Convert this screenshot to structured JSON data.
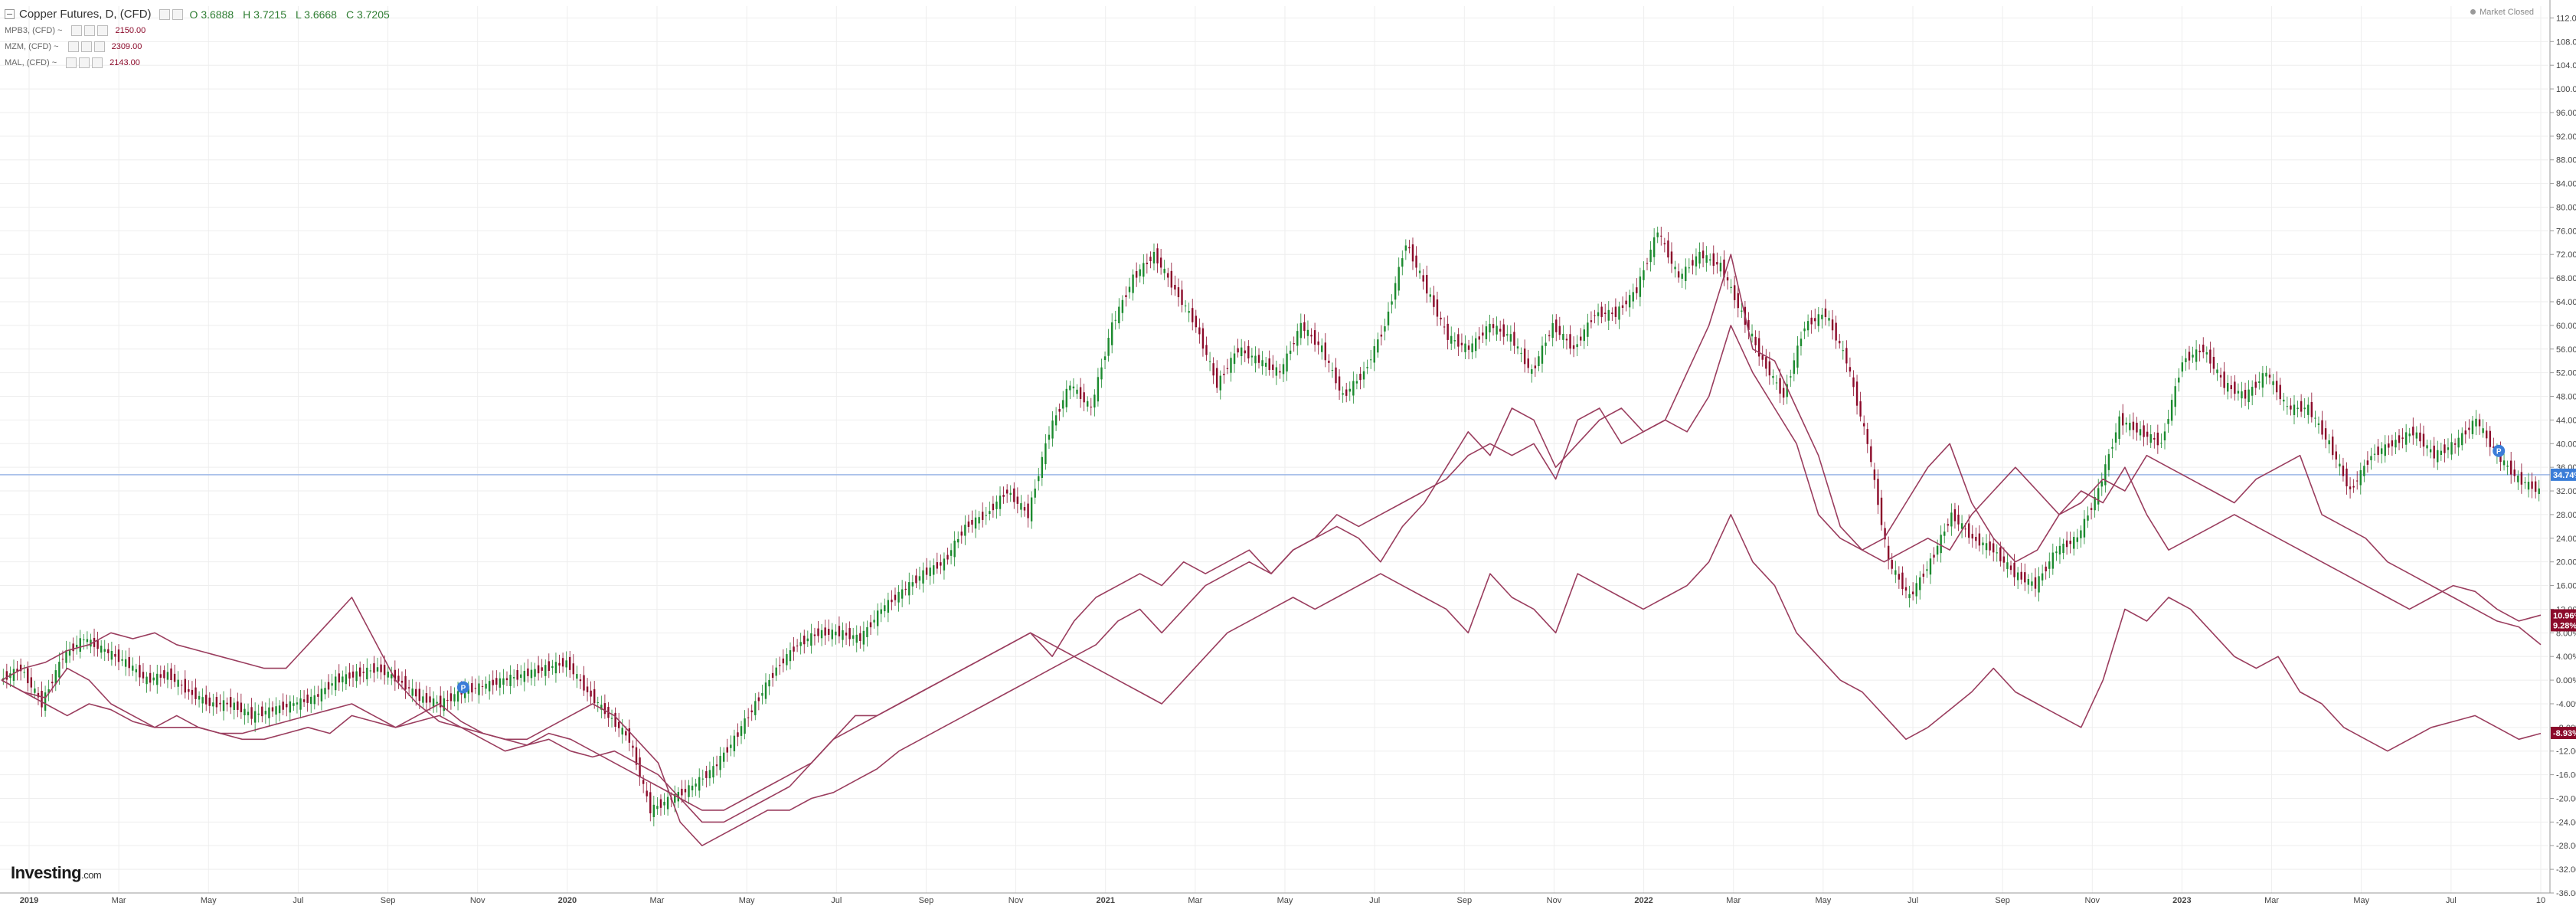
{
  "window": {
    "market_status": "Market Closed"
  },
  "legend": {
    "main": {
      "title": "Copper Futures, D, (CFD)",
      "o": "O 3.6888",
      "h": "H 3.7215",
      "l": "L 3.6668",
      "c": "C 3.7205"
    },
    "compare": [
      {
        "label": "MPB3, (CFD) ~",
        "value": "2150.00"
      },
      {
        "label": "MZM, (CFD) ~",
        "value": "2309.00"
      },
      {
        "label": "MAL, (CFD) ~",
        "value": "2143.00"
      }
    ]
  },
  "logo": {
    "brand": "Investing",
    "suffix": ".com"
  },
  "colors": {
    "up": "#1b8a2e",
    "down": "#8b0a2a",
    "compare": "#9a3d5e",
    "hline": "#9db7e6",
    "grid": "#eeeeee",
    "axis_badge_blue": "#3b7dd8",
    "axis_badge_red": "#8b0a2a"
  },
  "chart_data": {
    "type": "line",
    "title": "Copper Futures, D, (CFD)",
    "y_unit": "percent change",
    "ylim": [
      -36,
      114
    ],
    "y_ticks": [
      112,
      108,
      104,
      100,
      96,
      92,
      88,
      84,
      80,
      76,
      72,
      68,
      64,
      60,
      56,
      52,
      48,
      44,
      40,
      36,
      32,
      28,
      24,
      20,
      16,
      12,
      8,
      4,
      0,
      -4,
      -8,
      -12,
      -16,
      -20,
      -24,
      -28,
      -32,
      -36
    ],
    "x_ticks": [
      "2019",
      "Mar",
      "May",
      "Jul",
      "Sep",
      "Nov",
      "2020",
      "Mar",
      "May",
      "Jul",
      "Sep",
      "Nov",
      "2021",
      "Mar",
      "May",
      "Jul",
      "Sep",
      "Nov",
      "2022",
      "Mar",
      "May",
      "Jul",
      "Sep",
      "Nov",
      "2023",
      "Mar",
      "May",
      "Jul",
      "10"
    ],
    "x_tick_bold": [
      "2019",
      "2020",
      "2021",
      "2022",
      "2023"
    ],
    "time_range": [
      "2019-01-02",
      "2023-10-10"
    ],
    "horizontal_line": 34.74,
    "series": [
      {
        "name": "Copper Futures",
        "style": "candles",
        "values": [
          0,
          2,
          -4,
          4,
          7,
          5,
          3,
          0,
          1,
          -2,
          -4,
          -4,
          -6,
          -5,
          -4,
          -3,
          0,
          1,
          2,
          0,
          -3,
          -4,
          -2,
          -1,
          0,
          1,
          2,
          3,
          -2,
          -6,
          -10,
          -22,
          -20,
          -18,
          -15,
          -10,
          -4,
          2,
          6,
          8,
          8,
          7,
          12,
          15,
          18,
          20,
          26,
          28,
          32,
          28,
          42,
          50,
          46,
          60,
          68,
          72,
          66,
          60,
          50,
          56,
          54,
          52,
          60,
          56,
          48,
          52,
          60,
          74,
          66,
          58,
          56,
          60,
          58,
          52,
          60,
          56,
          62,
          62,
          66,
          76,
          68,
          72,
          70,
          62,
          54,
          48,
          60,
          62,
          54,
          40,
          20,
          14,
          20,
          28,
          24,
          22,
          18,
          16,
          22,
          24,
          32,
          44,
          42,
          40,
          54,
          56,
          50,
          48,
          52,
          46,
          46,
          40,
          32,
          38,
          40,
          42,
          38,
          40,
          44,
          38,
          34,
          32
        ]
      },
      {
        "name": "MPB3",
        "style": "line",
        "values": [
          0,
          -2,
          -3,
          2,
          0,
          -4,
          -6,
          -8,
          -6,
          -8,
          -9,
          -9,
          -8,
          -7,
          -6,
          -5,
          -4,
          -6,
          -8,
          -7,
          -6,
          -8,
          -9,
          -10,
          -10,
          -8,
          -6,
          -4,
          -6,
          -10,
          -14,
          -24,
          -28,
          -26,
          -24,
          -22,
          -22,
          -20,
          -19,
          -17,
          -15,
          -12,
          -10,
          -8,
          -6,
          -4,
          -2,
          0,
          2,
          4,
          6,
          10,
          12,
          8,
          12,
          16,
          18,
          20,
          18,
          22,
          24,
          28,
          26,
          28,
          30,
          32,
          34,
          38,
          40,
          38,
          40,
          34,
          44,
          46,
          40,
          42,
          44,
          42,
          48,
          60,
          52,
          46,
          40,
          28,
          24,
          22,
          20,
          22,
          24,
          22,
          28,
          32,
          36,
          32,
          28,
          30,
          34,
          32,
          38,
          36,
          34,
          32,
          30,
          34,
          36,
          38,
          28,
          26,
          24,
          20,
          18,
          16,
          14,
          12,
          10,
          9,
          6
        ]
      },
      {
        "name": "MZM",
        "style": "line",
        "values": [
          0,
          -2,
          -4,
          -6,
          -4,
          -5,
          -7,
          -8,
          -8,
          -8,
          -9,
          -10,
          -10,
          -9,
          -8,
          -9,
          -6,
          -7,
          -8,
          -6,
          -4,
          -7,
          -9,
          -10,
          -11,
          -10,
          -12,
          -13,
          -12,
          -14,
          -16,
          -20,
          -24,
          -24,
          -22,
          -20,
          -18,
          -14,
          -10,
          -6,
          -6,
          -4,
          -2,
          0,
          2,
          4,
          6,
          8,
          4,
          10,
          14,
          16,
          18,
          16,
          20,
          18,
          20,
          22,
          18,
          22,
          24,
          26,
          24,
          20,
          26,
          30,
          36,
          42,
          38,
          46,
          44,
          36,
          40,
          44,
          46,
          42,
          44,
          52,
          60,
          72,
          56,
          54,
          46,
          38,
          26,
          22,
          24,
          30,
          36,
          40,
          30,
          24,
          20,
          22,
          28,
          32,
          30,
          36,
          28,
          22,
          24,
          26,
          28,
          26,
          24,
          22,
          20,
          18,
          16,
          14,
          12,
          14,
          16,
          15,
          12,
          10,
          11
        ]
      },
      {
        "name": "MAL",
        "style": "line",
        "values": [
          0,
          2,
          3,
          5,
          6,
          8,
          7,
          8,
          6,
          5,
          4,
          3,
          2,
          2,
          6,
          10,
          14,
          7,
          0,
          -4,
          -7,
          -8,
          -10,
          -12,
          -11,
          -9,
          -10,
          -12,
          -14,
          -16,
          -18,
          -20,
          -22,
          -22,
          -20,
          -18,
          -16,
          -14,
          -10,
          -8,
          -6,
          -4,
          -2,
          0,
          2,
          4,
          6,
          8,
          6,
          4,
          2,
          0,
          -2,
          -4,
          0,
          4,
          8,
          10,
          12,
          14,
          12,
          14,
          16,
          18,
          16,
          14,
          12,
          8,
          18,
          14,
          12,
          8,
          18,
          16,
          14,
          12,
          14,
          16,
          20,
          28,
          20,
          16,
          8,
          4,
          0,
          -2,
          -6,
          -10,
          -8,
          -5,
          -2,
          2,
          -2,
          -4,
          -6,
          -8,
          0,
          12,
          10,
          14,
          12,
          8,
          4,
          2,
          4,
          -2,
          -4,
          -8,
          -10,
          -12,
          -10,
          -8,
          -7,
          -6,
          -8,
          -10,
          -9
        ]
      }
    ],
    "right_labels": [
      {
        "text": "34.74%",
        "value": 34.74,
        "color": "blue"
      },
      {
        "text": "10.96%",
        "value": 10.96,
        "color": "red"
      },
      {
        "text": "9.28%",
        "value": 9.28,
        "color": "red"
      },
      {
        "text": "-8.93%",
        "value": -8.93,
        "color": "red"
      }
    ],
    "markers": [
      {
        "letter": "P",
        "series": "Copper Futures",
        "index": 22
      },
      {
        "letter": "P",
        "series": "Copper Futures",
        "index": 119
      }
    ]
  }
}
